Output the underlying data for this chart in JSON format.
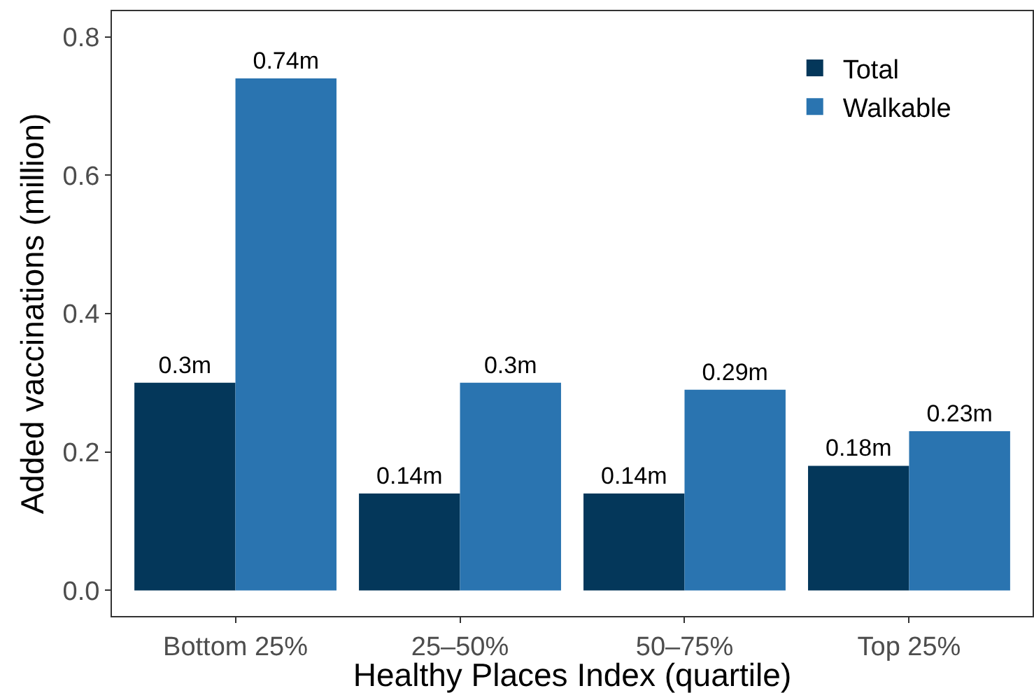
{
  "chart_data": {
    "type": "bar",
    "xlabel": "Healthy Places Index (quartile)",
    "ylabel": "Added vaccinations (million)",
    "categories": [
      "Bottom 25%",
      "25–50%",
      "50–75%",
      "Top 25%"
    ],
    "series": [
      {
        "name": "Total",
        "color": "#04375a",
        "values": [
          0.3,
          0.14,
          0.14,
          0.18
        ],
        "value_labels": [
          "0.3m",
          "0.14m",
          "0.14m",
          "0.18m"
        ]
      },
      {
        "name": "Walkable",
        "color": "#2a74b0",
        "values": [
          0.74,
          0.3,
          0.29,
          0.23
        ],
        "value_labels": [
          "0.74m",
          "0.3m",
          "0.29m",
          "0.23m"
        ]
      }
    ],
    "ylim": [
      -0.037,
      0.837
    ],
    "yticks": [
      {
        "value": 0,
        "label": "0.0"
      },
      {
        "value": 0.2,
        "label": "0.2"
      },
      {
        "value": 0.4,
        "label": "0.4"
      },
      {
        "value": 0.6,
        "label": "0.6"
      },
      {
        "value": 0.8,
        "label": "0.8"
      }
    ],
    "grid": false,
    "legend": "top right"
  }
}
